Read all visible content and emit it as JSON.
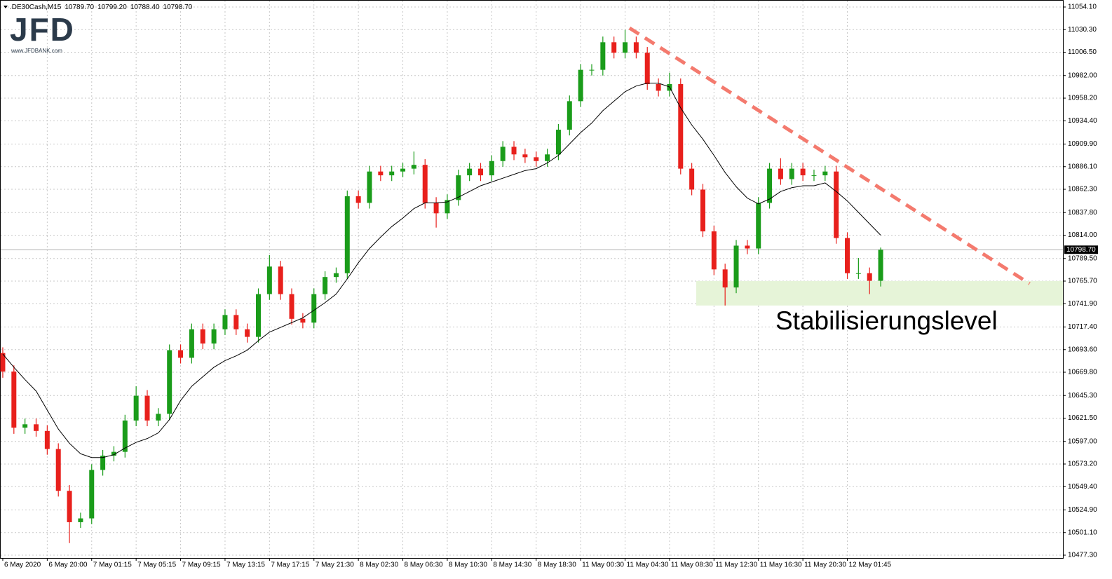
{
  "chart_data": {
    "type": "candlestick",
    "symbol": ".DE30Cash,M15",
    "header_ohlc": [
      {
        "value": 10789.7,
        "label": "10789.70"
      },
      {
        "value": 10799.2,
        "label": "10799.20"
      },
      {
        "value": 10788.4,
        "label": "10788.40"
      },
      {
        "value": 10798.7,
        "label": "10798.70"
      }
    ],
    "logo": {
      "text": "JFD",
      "url": "www.JFDBANK.com"
    },
    "annotation": "Stabilisierungslevel",
    "categories": [
      "6 May 2020",
      null,
      null,
      null,
      "6 May 20:00",
      null,
      null,
      null,
      "7 May 01:15",
      null,
      null,
      null,
      "7 May 05:15",
      null,
      null,
      null,
      "7 May 09:15",
      null,
      null,
      null,
      "7 May 13:15",
      null,
      null,
      null,
      "7 May 17:15",
      null,
      null,
      null,
      "7 May 21:30",
      null,
      null,
      null,
      "8 May 02:30",
      null,
      null,
      null,
      "8 May 06:30",
      null,
      null,
      null,
      "8 May 10:30",
      null,
      null,
      null,
      "8 May 14:30",
      null,
      null,
      null,
      "8 May 18:30",
      null,
      null,
      null,
      "11 May 00:30",
      null,
      null,
      null,
      "11 May 04:30",
      null,
      null,
      null,
      "11 May 08:30",
      null,
      null,
      null,
      "11 May 12:30",
      null,
      null,
      null,
      "11 May 16:30",
      null,
      null,
      null,
      "11 May 20:30",
      null,
      null,
      null,
      "12 May 01:45",
      null,
      null,
      null
    ],
    "open": [
      10690,
      10670.5,
      10611.5,
      10615,
      10608,
      10589,
      10545,
      10512,
      10516,
      10567,
      10582,
      10586,
      10619,
      10645,
      10619,
      10626,
      10693,
      10685,
      10715,
      10700,
      10715,
      10730,
      10715,
      10707,
      10752,
      10781,
      10752,
      10726,
      10722,
      10752,
      10770,
      10774,
      10855,
      10848,
      10881,
      10877,
      10881,
      10884,
      10888,
      10848,
      10837,
      10851,
      10877,
      10884,
      10877,
      10892,
      10907,
      10899,
      10896,
      10892,
      10899,
      10925,
      10955,
      10988,
      10988,
      11017,
      11006,
      11017,
      11006,
      10973,
      10966,
      10973,
      10884,
      10862,
      10818,
      10778,
      10759,
      10803,
      10800,
      10848,
      10884,
      10873,
      10884,
      10877,
      10877,
      10881,
      10811,
      10774,
      10774,
      10766
    ],
    "high": [
      10696,
      10677,
      10621,
      10621,
      10614,
      10595,
      10551,
      10522,
      10573,
      10588,
      10592,
      10625,
      10655,
      10651,
      10632,
      10699,
      10699,
      10721,
      10721,
      10721,
      10736,
      10736,
      10721,
      10758,
      10793,
      10787,
      10758,
      10732,
      10758,
      10776,
      10780,
      10861,
      10861,
      10887,
      10887,
      10887,
      10890,
      10902,
      10894,
      10854,
      10857,
      10883,
      10890,
      10890,
      10898,
      10913,
      10913,
      10905,
      10902,
      10905,
      10931,
      10961,
      10994,
      10994,
      11023,
      11023,
      11030,
      11023,
      11012,
      10979,
      10985,
      10979,
      10890,
      10868,
      10824,
      10784,
      10809,
      10809,
      10854,
      10890,
      10895,
      10890,
      10890,
      10883,
      10887,
      10887,
      10817,
      10790,
      10780,
      10801
    ],
    "low": [
      10664,
      10605,
      10605,
      10602,
      10583,
      10539,
      10490,
      10506,
      10510,
      10561,
      10576,
      10580,
      10613,
      10613,
      10613,
      10620,
      10679,
      10679,
      10694,
      10694,
      10709,
      10709,
      10701,
      10701,
      10746,
      10746,
      10720,
      10716,
      10716,
      10746,
      10764,
      10768,
      10842,
      10842,
      10871,
      10871,
      10875,
      10878,
      10842,
      10822,
      10831,
      10845,
      10871,
      10871,
      10871,
      10886,
      10893,
      10890,
      10886,
      10886,
      10893,
      10919,
      10949,
      10982,
      10982,
      11000,
      11000,
      11000,
      10967,
      10960,
      10960,
      10878,
      10856,
      10812,
      10772,
      10740,
      10753,
      10794,
      10794,
      10842,
      10867,
      10867,
      10871,
      10871,
      10871,
      10805,
      10768,
      10768,
      10752,
      10760
    ],
    "close": [
      10670.5,
      10611.5,
      10615,
      10608,
      10589,
      10545,
      10512,
      10516,
      10567,
      10582,
      10586,
      10619,
      10645,
      10619,
      10626,
      10693,
      10685,
      10715,
      10700,
      10715,
      10730,
      10715,
      10707,
      10752,
      10781,
      10752,
      10726,
      10722,
      10752,
      10770,
      10774,
      10855,
      10848,
      10881,
      10877,
      10881,
      10884,
      10888,
      10848,
      10837,
      10851,
      10877,
      10884,
      10877,
      10892,
      10907,
      10899,
      10896,
      10892,
      10899,
      10925,
      10955,
      10988,
      10988,
      11017,
      11006,
      11017,
      11006,
      10973,
      10966,
      10973,
      10884,
      10862,
      10818,
      10778,
      10759,
      10803,
      10800,
      10848,
      10884,
      10873,
      10884,
      10877,
      10877,
      10881,
      10811,
      10774,
      10774,
      10766,
      10798.7
    ],
    "ma": [
      10689,
      10675,
      10662,
      10650,
      10630,
      10610,
      10595,
      10584,
      10580,
      10580,
      10583,
      10590,
      10596,
      10600,
      10606,
      10620,
      10640,
      10655,
      10665,
      10675,
      10682,
      10687,
      10693,
      10703,
      10712,
      10717,
      10722,
      10727,
      10735,
      10743,
      10752,
      10768,
      10785,
      10800,
      10812,
      10823,
      10832,
      10842,
      10848,
      10848,
      10849,
      10854,
      10860,
      10866,
      10870,
      10874,
      10878,
      10882,
      10884,
      10890,
      10898,
      10910,
      10922,
      10932,
      10945,
      10955,
      10965,
      10971,
      10974,
      10974,
      10970,
      10948,
      10930,
      10915,
      10898,
      10880,
      10865,
      10853,
      10847,
      10852,
      10860,
      10864,
      10866,
      10866,
      10869,
      10860,
      10850,
      10838,
      10826,
      10814
    ],
    "up_color": "#1a9c1a",
    "down_color": "#e8201c",
    "ma_color": "#000000",
    "current_price": {
      "value": 10798.7,
      "label": "10798.70"
    },
    "trendline": {
      "x": [
        56.4,
        92.4
      ],
      "y": [
        11032,
        10763
      ],
      "color": "#f47a6e"
    },
    "zone": {
      "x": [
        62.4,
        95.4
      ],
      "y": [
        10740,
        10765.7
      ],
      "color": "#e6f4d8"
    },
    "xlim": [
      -0.25,
      95.4
    ],
    "ylim": [
      10477.3,
      11054.1
    ],
    "yticks": [
      {
        "value": 11054.1,
        "label": "11054.10"
      },
      {
        "value": 11030.3,
        "label": "11030.30"
      },
      {
        "value": 11006.5,
        "label": "11006.50"
      },
      {
        "value": 10982,
        "label": "10982.00"
      },
      {
        "value": 10958.2,
        "label": "10958.20"
      },
      {
        "value": 10934.4,
        "label": "10934.40"
      },
      {
        "value": 10909.9,
        "label": "10909.90"
      },
      {
        "value": 10886.1,
        "label": "10886.10"
      },
      {
        "value": 10862.3,
        "label": "10862.30"
      },
      {
        "value": 10837.8,
        "label": "10837.80"
      },
      {
        "value": 10814,
        "label": "10814.00"
      },
      {
        "value": 10789.5,
        "label": "10789.50"
      },
      {
        "value": 10765.7,
        "label": "10765.70"
      },
      {
        "value": 10741.9,
        "label": "10741.90"
      },
      {
        "value": 10717.4,
        "label": "10717.40"
      },
      {
        "value": 10693.6,
        "label": "10693.60"
      },
      {
        "value": 10669.8,
        "label": "10669.80"
      },
      {
        "value": 10645.3,
        "label": "10645.30"
      },
      {
        "value": 10621.5,
        "label": "10621.50"
      },
      {
        "value": 10597,
        "label": "10597.00"
      },
      {
        "value": 10573.2,
        "label": "10573.20"
      },
      {
        "value": 10549.4,
        "label": "10549.40"
      },
      {
        "value": 10524.9,
        "label": "10524.90"
      },
      {
        "value": 10501.1,
        "label": "10501.10"
      },
      {
        "value": 10477.3,
        "label": "10477.30"
      }
    ],
    "grid": true
  }
}
